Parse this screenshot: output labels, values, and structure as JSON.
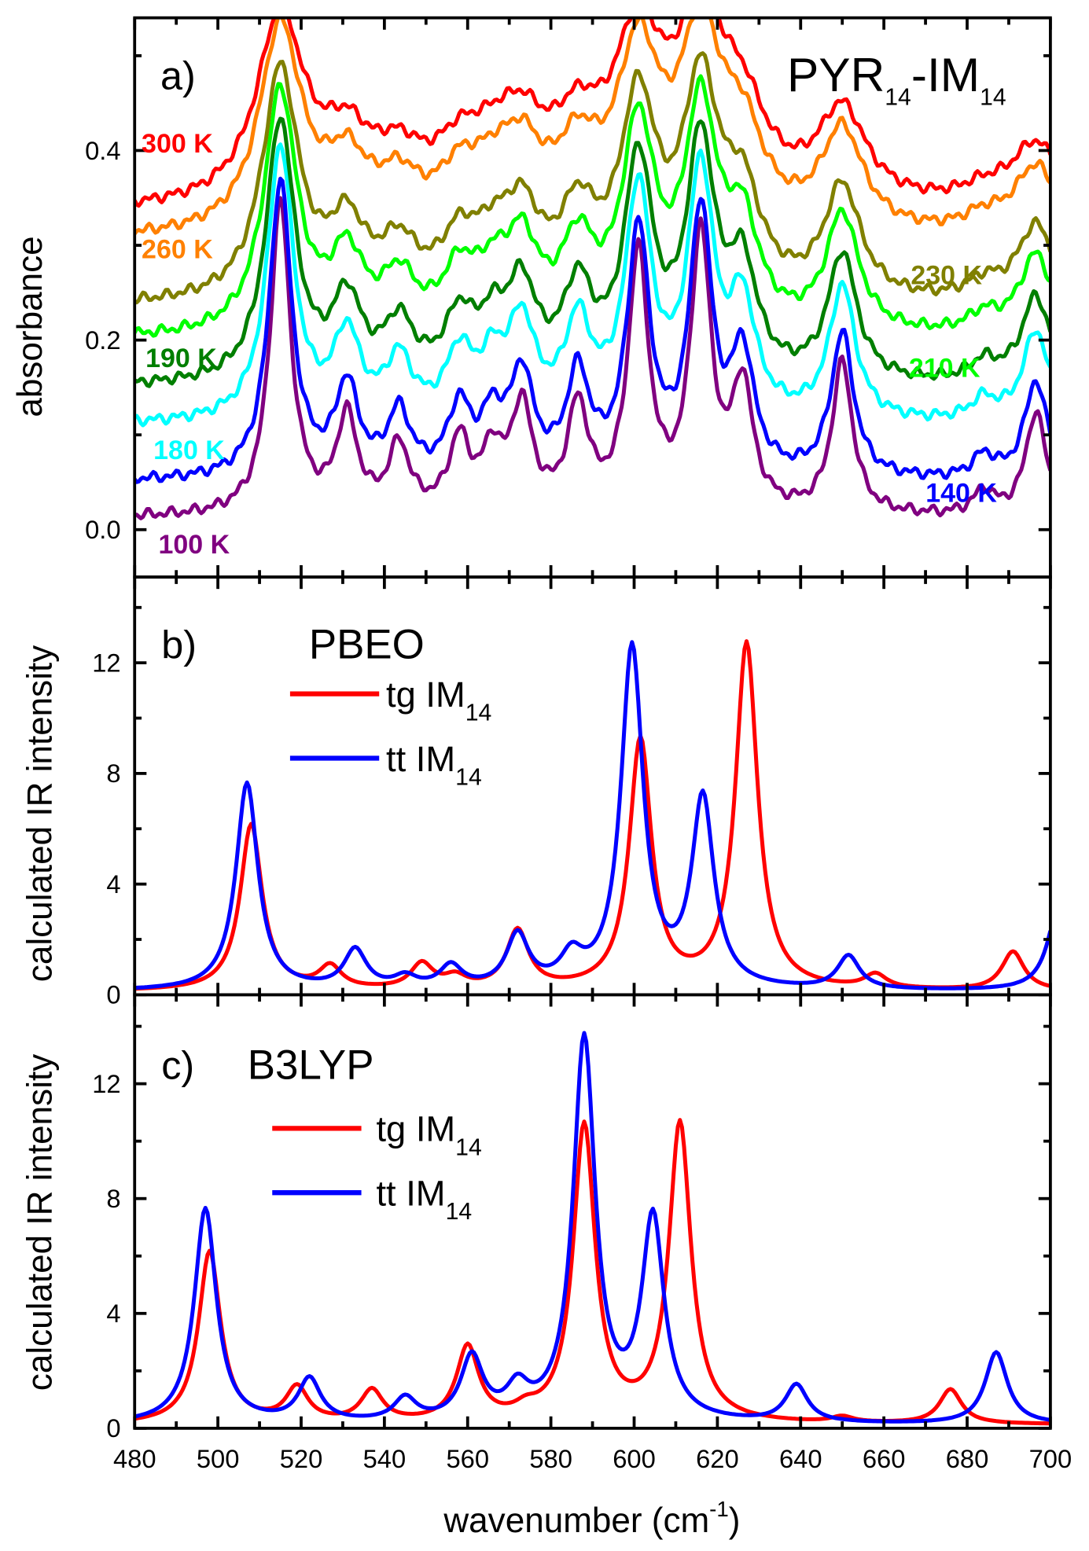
{
  "chart_data": [
    {
      "panel": "a)",
      "type": "line",
      "title": "PYR14-IM14",
      "title_main": "PYR",
      "title_sub1": "14",
      "title_mid": "-IM",
      "title_sub2": "14",
      "xlabel": "wavenumber (cm-1)",
      "ylabel": "absorbance",
      "xlim": [
        480,
        700
      ],
      "ylim": [
        -0.05,
        0.54
      ],
      "yticks": [
        "0.0",
        "0.2",
        "0.4"
      ],
      "peaks_cm1": [
        515,
        531,
        543.5,
        558,
        566,
        573,
        586.5,
        601,
        616,
        626,
        650,
        684,
        696.5
      ],
      "peak_heights": [
        0.33,
        0.1,
        0.07,
        0.075,
        0.06,
        0.11,
        0.11,
        0.27,
        0.29,
        0.13,
        0.16,
        0.025,
        0.11
      ],
      "series": [
        {
          "name": "100 K",
          "color": "#800080",
          "offset": 0.012,
          "hwhm": 3.0,
          "scale": 1.0
        },
        {
          "name": "140 K",
          "color": "#0000ff",
          "offset": 0.05,
          "hwhm": 3.3,
          "scale": 0.95
        },
        {
          "name": "180 K",
          "color": "#00ffff",
          "offset": 0.11,
          "hwhm": 3.8,
          "scale": 0.88
        },
        {
          "name": "190 K",
          "color": "#007f00",
          "offset": 0.15,
          "hwhm": 4.2,
          "scale": 0.84
        },
        {
          "name": "210 K",
          "color": "#00ff00",
          "offset": 0.2,
          "hwhm": 4.8,
          "scale": 0.78
        },
        {
          "name": "230 K",
          "color": "#808000",
          "offset": 0.235,
          "hwhm": 5.3,
          "scale": 0.74
        },
        {
          "name": "260 K",
          "color": "#ff8000",
          "offset": 0.305,
          "hwhm": 6.2,
          "scale": 0.66
        },
        {
          "name": "300 K",
          "color": "#ff0000",
          "offset": 0.335,
          "hwhm": 7.0,
          "scale": 0.6
        }
      ]
    },
    {
      "panel": "b)",
      "type": "line",
      "method": "PBEO",
      "ylabel": "calculated IR intensity",
      "xlim": [
        480,
        700
      ],
      "ylim": [
        0,
        15.1
      ],
      "yticks": [
        "0",
        "4",
        "8",
        "12"
      ],
      "series": [
        {
          "name": "tg IM14",
          "label": "tg IM",
          "sub": "14",
          "color": "#ff0000",
          "hwhm": 3.2,
          "peaks": [
            [
              508,
              6.0
            ],
            [
              527,
              0.8
            ],
            [
              549,
              0.9
            ],
            [
              557,
              0.4
            ],
            [
              572,
              2.1
            ],
            [
              601.5,
              9.0
            ],
            [
              627,
              12.5
            ],
            [
              658,
              0.5
            ],
            [
              691,
              1.4
            ]
          ]
        },
        {
          "name": "tt IM14",
          "label": "tt IM",
          "sub": "14",
          "color": "#0000ff",
          "hwhm": 3.2,
          "peaks": [
            [
              507,
              7.5
            ],
            [
              533,
              1.4
            ],
            [
              545,
              0.4
            ],
            [
              556,
              0.8
            ],
            [
              572,
              1.9
            ],
            [
              585,
              1.0
            ],
            [
              599.5,
              12.3
            ],
            [
              616.5,
              6.8
            ],
            [
              651.5,
              1.2
            ],
            [
              702,
              3.0
            ]
          ]
        }
      ]
    },
    {
      "panel": "c)",
      "type": "line",
      "method": "B3LYP",
      "ylabel": "calculated IR intensity",
      "xlabel": "wavenumber (cm-1)",
      "xlim": [
        480,
        700
      ],
      "ylim": [
        0,
        15.1
      ],
      "yticks": [
        "0",
        "4",
        "8",
        "12"
      ],
      "xticks": [
        "480",
        "500",
        "520",
        "540",
        "560",
        "580",
        "600",
        "620",
        "640",
        "660",
        "680",
        "700"
      ],
      "series": [
        {
          "name": "tg IM14",
          "label": "tg IM",
          "sub": "14",
          "color": "#ff0000",
          "hwhm": 3.2,
          "peaks": [
            [
              498,
              6.0
            ],
            [
              519,
              1.2
            ],
            [
              537,
              1.1
            ],
            [
              560,
              2.6
            ],
            [
              574,
              0.3
            ],
            [
              588,
              10.3
            ],
            [
              611,
              10.4
            ],
            [
              650,
              0.2
            ],
            [
              676,
              1.2
            ]
          ]
        },
        {
          "name": "tt IM14",
          "label": "tt IM",
          "sub": "14",
          "color": "#0000ff",
          "hwhm": 3.2,
          "peaks": [
            [
              497,
              7.5
            ],
            [
              522,
              1.5
            ],
            [
              545,
              0.8
            ],
            [
              561,
              2.2
            ],
            [
              572,
              1.0
            ],
            [
              588,
              13.3
            ],
            [
              604.5,
              7.0
            ],
            [
              639,
              1.3
            ],
            [
              687,
              2.5
            ]
          ]
        }
      ]
    }
  ],
  "xlabel_main": "wavenumber (cm",
  "xlabel_sup": "-1",
  "xlabel_end": ")"
}
